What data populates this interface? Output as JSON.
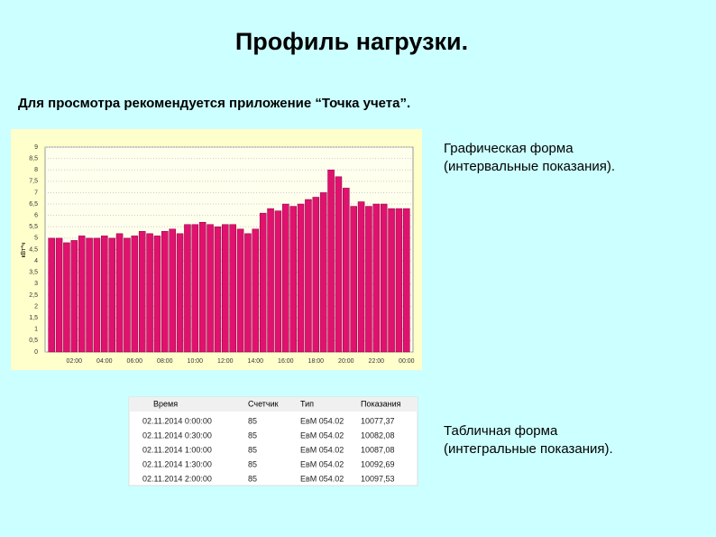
{
  "title": "Профиль нагрузки.",
  "subtitle": "Для просмотра рекомендуется приложение “Точка учета”.",
  "chart_data": {
    "type": "bar",
    "ylabel": "кВт*ч",
    "color": "#e0126e",
    "categories": [
      null,
      null,
      null,
      "02:00",
      null,
      null,
      null,
      "04:00",
      null,
      null,
      null,
      "06:00",
      null,
      null,
      null,
      "08:00",
      null,
      null,
      null,
      "10:00",
      null,
      null,
      null,
      "12:00",
      null,
      null,
      null,
      "14:00",
      null,
      null,
      null,
      "16:00",
      null,
      null,
      null,
      "18:00",
      null,
      null,
      null,
      "20:00",
      null,
      null,
      null,
      "22:00",
      null,
      null,
      null,
      "00:00"
    ],
    "values": [
      5.0,
      5.0,
      4.8,
      4.9,
      5.1,
      5.0,
      5.0,
      5.1,
      5.0,
      5.2,
      5.0,
      5.1,
      5.3,
      5.2,
      5.1,
      5.3,
      5.4,
      5.2,
      5.6,
      5.6,
      5.7,
      5.6,
      5.5,
      5.6,
      5.6,
      5.4,
      5.2,
      5.4,
      6.1,
      6.3,
      6.2,
      6.5,
      6.4,
      6.5,
      6.7,
      6.8,
      7.0,
      8.0,
      7.7,
      7.2,
      6.4,
      6.6,
      6.4,
      6.5,
      6.5,
      6.3,
      6.3,
      6.3
    ],
    "ylim": [
      0,
      9
    ],
    "yticks": [
      0,
      {
        "value": 0.5,
        "label": "0,5"
      },
      1,
      {
        "value": 1.5,
        "label": "1,5"
      },
      2,
      {
        "value": 2.5,
        "label": "2,5"
      },
      3,
      {
        "value": 3.5,
        "label": "3,5"
      },
      4,
      {
        "value": 4.5,
        "label": "4,5"
      },
      5,
      {
        "value": 5.5,
        "label": "5,5"
      },
      6,
      {
        "value": 6.5,
        "label": "6,5"
      },
      7,
      {
        "value": 7.5,
        "label": "7,5"
      },
      8,
      {
        "value": 8.5,
        "label": "8,5"
      },
      9
    ],
    "grid": true
  },
  "captions": [
    {
      "lines": [
        "Графическая форма",
        "(интервальные показания)."
      ]
    },
    {
      "lines": [
        "Табличная форма",
        "(интегральные показания)."
      ]
    }
  ],
  "table": {
    "header": [
      "Время",
      "Счетчик",
      "Тип",
      "Показания"
    ],
    "rows": [
      [
        "02.11.2014 0:00:00",
        "85",
        "ЕвМ 054.02",
        "10077,37"
      ],
      [
        "02.11.2014 0:30:00",
        "85",
        "ЕвМ 054.02",
        "10082,08"
      ],
      [
        "02.11.2014 1:00:00",
        "85",
        "ЕвМ 054.02",
        "10087,08"
      ],
      [
        "02.11.2014 1:30:00",
        "85",
        "ЕвМ 054.02",
        "10092,69"
      ],
      [
        "02.11.2014 2:00:00",
        "85",
        "ЕвМ 054.02",
        "10097,53"
      ]
    ]
  }
}
